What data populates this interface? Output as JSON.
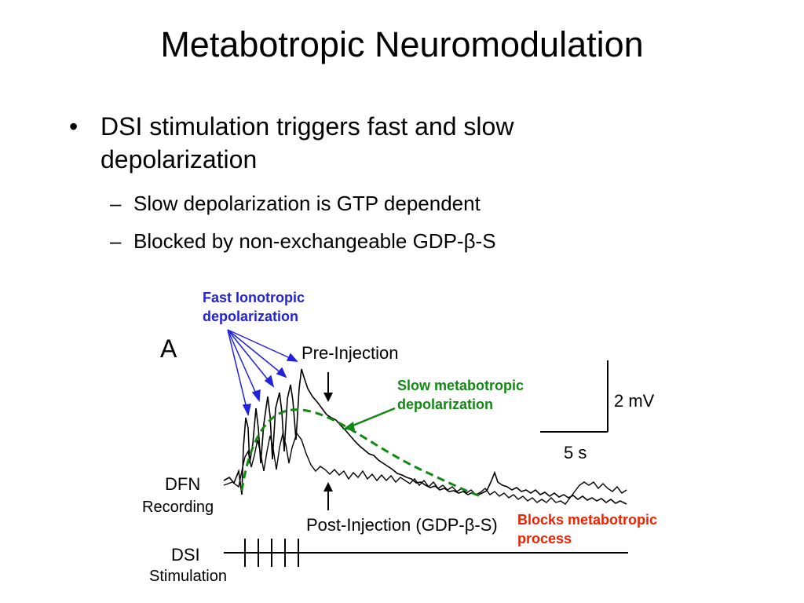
{
  "slide": {
    "title": "Metabotropic Neuromodulation",
    "bullets": [
      {
        "marker": "•",
        "text": "DSI stimulation triggers fast and slow depolarization",
        "subbullets": [
          {
            "marker": "–",
            "text": "Slow depolarization is GTP dependent"
          },
          {
            "marker": "–",
            "text": "Blocked by non-exchangeable GDP-β-S"
          }
        ]
      }
    ]
  },
  "figure": {
    "panel_label": "A",
    "pre_injection_label": "Pre-Injection",
    "post_injection_label": "Post-Injection (GDP-β-S)",
    "dfn_label": "DFN",
    "dsi_label": "DSI",
    "scale_voltage": "2 mV",
    "scale_time": "5 s"
  },
  "annotations": {
    "fast": {
      "line1": "Fast Ionotropic",
      "line2": "depolarization",
      "color": "#2222dd"
    },
    "slow": {
      "line1": "Slow metabotropic",
      "line2": "depolarization",
      "color": "#118811"
    },
    "blocks": {
      "line1": "Blocks metabotropic",
      "line2": "process",
      "color": "#ee2200"
    },
    "recording": "Recording",
    "stimulation": "Stimulation"
  }
}
